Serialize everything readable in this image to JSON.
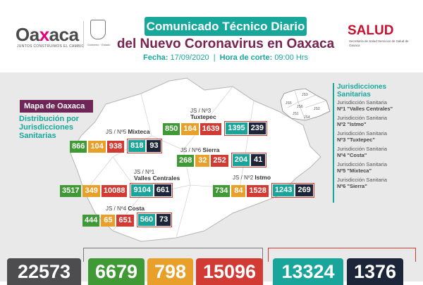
{
  "header": {
    "logo_text_a": "Oa",
    "logo_text_x": "x",
    "logo_text_b": "aca",
    "logo_tagline": "JUNTOS CONSTRUIMOS EL CAMBIO",
    "seal_label": "Gobierno · Estado",
    "title_line1": "Comunicado Técnico Diario",
    "title_line2": "del Nuevo Coronavirus en Oaxaca",
    "date_label": "Fecha:",
    "date_value": "17/09/2020",
    "cut_label": "Hora de corte:",
    "cut_value": "09:00 Hrs",
    "salud_logo": "SALUD",
    "salud_sub": "Secretaría de Salud Servicios de Salud de Oaxaca"
  },
  "map": {
    "badge": "Mapa de Oaxaca",
    "subtitle": "Distribución por Jurisdicciones Sanitarias"
  },
  "regions": [
    {
      "code": "JS / Nº3",
      "name": "Tuxtepec",
      "values": [
        "850",
        "164",
        "1639"
      ],
      "boxed": [
        "1395",
        "239"
      ]
    },
    {
      "code": "JS / Nº5",
      "name": "Mixteca",
      "values": [
        "866",
        "104",
        "938"
      ],
      "boxed": [
        "818",
        "93"
      ]
    },
    {
      "code": "JS / Nº6",
      "name": "Sierra",
      "values": [
        "268",
        "32",
        "252"
      ],
      "boxed": [
        "204",
        "41"
      ]
    },
    {
      "code": "JS / Nº1",
      "name": "Valles Centrales",
      "values": [
        "3517",
        "349",
        "10088"
      ],
      "boxed": [
        "9104",
        "661"
      ]
    },
    {
      "code": "JS / Nº2",
      "name": "Istmo",
      "values": [
        "734",
        "84",
        "1528"
      ],
      "boxed": [
        "1243",
        "269"
      ]
    },
    {
      "code": "JS / Nº4",
      "name": "Costa",
      "values": [
        "444",
        "65",
        "651"
      ],
      "boxed": [
        "560",
        "73"
      ]
    }
  ],
  "mini_map_labels": [
    "JS3",
    "JS5",
    "JS6",
    "JS1",
    "JS2",
    "JS4"
  ],
  "jurisdictions": {
    "title": "Jurisdicciones Sanitarias",
    "items": [
      {
        "prefix": "Jurisdicción Sanitaria",
        "name": "Nº1 \"Valles Centrales\""
      },
      {
        "prefix": "Jurisdicción Sanitaria",
        "name": "Nº2 \"Istmo\""
      },
      {
        "prefix": "Jurisdicción Sanitaria",
        "name": "Nº3 \"Tuxtepec\""
      },
      {
        "prefix": "Jurisdicción Sanitaria",
        "name": "Nº4 \"Costa\""
      },
      {
        "prefix": "Jurisdicción Sanitaria",
        "name": "Nº5 \"Mixteca\""
      },
      {
        "prefix": "Jurisdicción Sanitaria",
        "name": "Nº6 \"Sierra\""
      }
    ]
  },
  "totals": [
    "22573",
    "6679",
    "798",
    "15096",
    "13324",
    "1376"
  ],
  "colors": {
    "teal": "#1aa59a",
    "maroon": "#6f2557",
    "green": "#3f9a35",
    "orange": "#e8a02a",
    "red": "#d23a34",
    "navy": "#1d2638",
    "grey": "#4d4d4f"
  }
}
